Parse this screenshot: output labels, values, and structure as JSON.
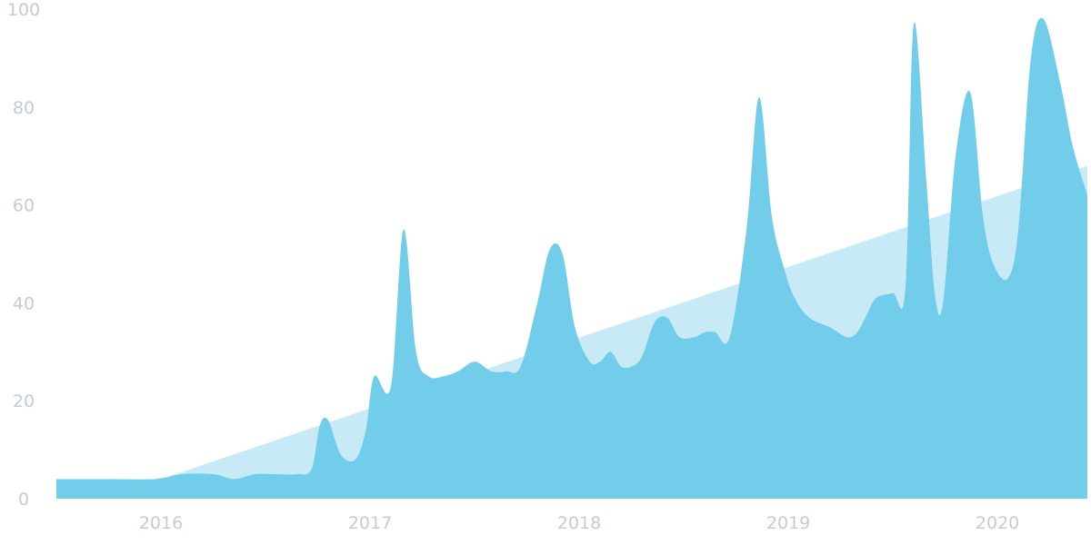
{
  "chart_data": {
    "type": "area",
    "title": "",
    "xlabel": "",
    "ylabel": "",
    "ylim": [
      0,
      100
    ],
    "xlim": [
      2015.5,
      2020.43
    ],
    "y_ticks": [
      0,
      20,
      40,
      60,
      80,
      100
    ],
    "y_tick_labels": [
      "0",
      "20",
      "40",
      "60",
      "80",
      "100"
    ],
    "x_ticks": [
      2016,
      2017,
      2018,
      2019,
      2020
    ],
    "x_tick_labels": [
      "2016",
      "2017",
      "2018",
      "2019",
      "2020"
    ],
    "grid": false,
    "legend": false,
    "colors": {
      "trend_fill": "#c7eaf6",
      "series_fill": "#72cdea",
      "tick_text": "#c3cbd6"
    },
    "series": [
      {
        "id": "trend",
        "x": [
          2015.5,
          2016.0,
          2020.43
        ],
        "y": [
          4,
          4,
          68
        ]
      },
      {
        "id": "interest",
        "x": [
          2015.5,
          2015.75,
          2015.97,
          2016.1,
          2016.25,
          2016.35,
          2016.45,
          2016.55,
          2016.65,
          2016.72,
          2016.76,
          2016.8,
          2016.86,
          2016.93,
          2016.98,
          2017.02,
          2017.1,
          2017.16,
          2017.22,
          2017.28,
          2017.35,
          2017.42,
          2017.5,
          2017.58,
          2017.65,
          2017.72,
          2017.8,
          2017.86,
          2017.92,
          2017.98,
          2018.05,
          2018.1,
          2018.15,
          2018.2,
          2018.25,
          2018.3,
          2018.36,
          2018.42,
          2018.48,
          2018.55,
          2018.6,
          2018.65,
          2018.72,
          2018.8,
          2018.86,
          2018.92,
          2018.98,
          2019.03,
          2019.1,
          2019.2,
          2019.28,
          2019.33,
          2019.38,
          2019.42,
          2019.5,
          2019.56,
          2019.6,
          2019.66,
          2019.7,
          2019.74,
          2019.8,
          2019.87,
          2019.93,
          2019.98,
          2020.05,
          2020.1,
          2020.16,
          2020.22,
          2020.3,
          2020.36,
          2020.43
        ],
        "y": [
          4,
          4,
          4,
          5,
          5,
          4,
          5,
          5,
          5,
          6,
          15,
          16,
          9,
          8,
          14,
          25,
          23,
          55,
          30,
          25,
          25,
          26,
          28,
          26,
          26,
          27,
          40,
          51,
          50,
          35,
          28,
          28,
          30,
          27,
          27,
          29,
          36,
          37,
          33,
          33,
          34,
          34,
          33,
          55,
          82,
          58,
          47,
          41,
          37,
          35,
          33,
          34,
          38,
          41,
          42,
          43,
          97,
          65,
          42,
          40,
          70,
          83,
          58,
          48,
          45,
          55,
          90,
          98,
          85,
          72,
          62
        ]
      }
    ]
  }
}
